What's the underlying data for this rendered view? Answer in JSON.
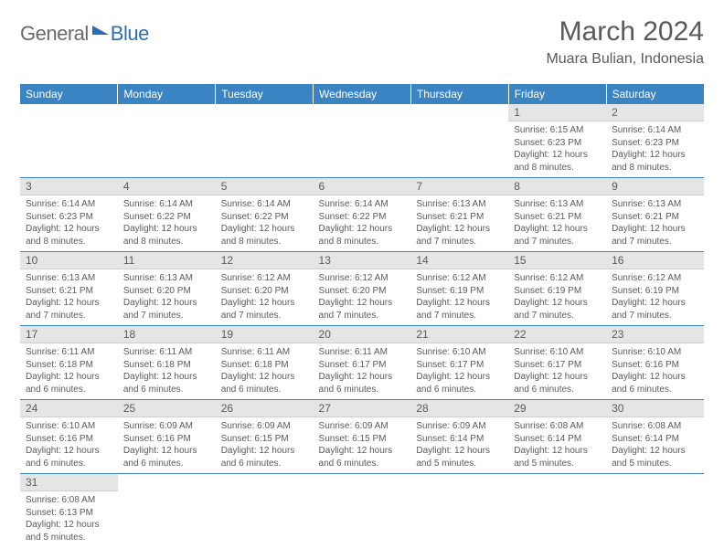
{
  "logo": {
    "text1": "General",
    "text2": "Blue"
  },
  "title": "March 2024",
  "subtitle": "Muara Bulian, Indonesia",
  "colors": {
    "header_bg": "#3b84c4",
    "header_text": "#ffffff",
    "daynum_bg": "#e5e5e5",
    "text": "#5a5a5a",
    "border": "#3b84c4",
    "logo_gray": "#6a6a6a",
    "logo_blue": "#2a6fb5"
  },
  "weekdays": [
    "Sunday",
    "Monday",
    "Tuesday",
    "Wednesday",
    "Thursday",
    "Friday",
    "Saturday"
  ],
  "weeks": [
    [
      null,
      null,
      null,
      null,
      null,
      {
        "n": "1",
        "sr": "6:15 AM",
        "ss": "6:23 PM",
        "dl": "12 hours and 8 minutes."
      },
      {
        "n": "2",
        "sr": "6:14 AM",
        "ss": "6:23 PM",
        "dl": "12 hours and 8 minutes."
      }
    ],
    [
      {
        "n": "3",
        "sr": "6:14 AM",
        "ss": "6:23 PM",
        "dl": "12 hours and 8 minutes."
      },
      {
        "n": "4",
        "sr": "6:14 AM",
        "ss": "6:22 PM",
        "dl": "12 hours and 8 minutes."
      },
      {
        "n": "5",
        "sr": "6:14 AM",
        "ss": "6:22 PM",
        "dl": "12 hours and 8 minutes."
      },
      {
        "n": "6",
        "sr": "6:14 AM",
        "ss": "6:22 PM",
        "dl": "12 hours and 8 minutes."
      },
      {
        "n": "7",
        "sr": "6:13 AM",
        "ss": "6:21 PM",
        "dl": "12 hours and 7 minutes."
      },
      {
        "n": "8",
        "sr": "6:13 AM",
        "ss": "6:21 PM",
        "dl": "12 hours and 7 minutes."
      },
      {
        "n": "9",
        "sr": "6:13 AM",
        "ss": "6:21 PM",
        "dl": "12 hours and 7 minutes."
      }
    ],
    [
      {
        "n": "10",
        "sr": "6:13 AM",
        "ss": "6:21 PM",
        "dl": "12 hours and 7 minutes."
      },
      {
        "n": "11",
        "sr": "6:13 AM",
        "ss": "6:20 PM",
        "dl": "12 hours and 7 minutes."
      },
      {
        "n": "12",
        "sr": "6:12 AM",
        "ss": "6:20 PM",
        "dl": "12 hours and 7 minutes."
      },
      {
        "n": "13",
        "sr": "6:12 AM",
        "ss": "6:20 PM",
        "dl": "12 hours and 7 minutes."
      },
      {
        "n": "14",
        "sr": "6:12 AM",
        "ss": "6:19 PM",
        "dl": "12 hours and 7 minutes."
      },
      {
        "n": "15",
        "sr": "6:12 AM",
        "ss": "6:19 PM",
        "dl": "12 hours and 7 minutes."
      },
      {
        "n": "16",
        "sr": "6:12 AM",
        "ss": "6:19 PM",
        "dl": "12 hours and 7 minutes."
      }
    ],
    [
      {
        "n": "17",
        "sr": "6:11 AM",
        "ss": "6:18 PM",
        "dl": "12 hours and 6 minutes."
      },
      {
        "n": "18",
        "sr": "6:11 AM",
        "ss": "6:18 PM",
        "dl": "12 hours and 6 minutes."
      },
      {
        "n": "19",
        "sr": "6:11 AM",
        "ss": "6:18 PM",
        "dl": "12 hours and 6 minutes."
      },
      {
        "n": "20",
        "sr": "6:11 AM",
        "ss": "6:17 PM",
        "dl": "12 hours and 6 minutes."
      },
      {
        "n": "21",
        "sr": "6:10 AM",
        "ss": "6:17 PM",
        "dl": "12 hours and 6 minutes."
      },
      {
        "n": "22",
        "sr": "6:10 AM",
        "ss": "6:17 PM",
        "dl": "12 hours and 6 minutes."
      },
      {
        "n": "23",
        "sr": "6:10 AM",
        "ss": "6:16 PM",
        "dl": "12 hours and 6 minutes."
      }
    ],
    [
      {
        "n": "24",
        "sr": "6:10 AM",
        "ss": "6:16 PM",
        "dl": "12 hours and 6 minutes."
      },
      {
        "n": "25",
        "sr": "6:09 AM",
        "ss": "6:16 PM",
        "dl": "12 hours and 6 minutes."
      },
      {
        "n": "26",
        "sr": "6:09 AM",
        "ss": "6:15 PM",
        "dl": "12 hours and 6 minutes."
      },
      {
        "n": "27",
        "sr": "6:09 AM",
        "ss": "6:15 PM",
        "dl": "12 hours and 6 minutes."
      },
      {
        "n": "28",
        "sr": "6:09 AM",
        "ss": "6:14 PM",
        "dl": "12 hours and 5 minutes."
      },
      {
        "n": "29",
        "sr": "6:08 AM",
        "ss": "6:14 PM",
        "dl": "12 hours and 5 minutes."
      },
      {
        "n": "30",
        "sr": "6:08 AM",
        "ss": "6:14 PM",
        "dl": "12 hours and 5 minutes."
      }
    ],
    [
      {
        "n": "31",
        "sr": "6:08 AM",
        "ss": "6:13 PM",
        "dl": "12 hours and 5 minutes."
      },
      null,
      null,
      null,
      null,
      null,
      null
    ]
  ],
  "labels": {
    "sunrise": "Sunrise:",
    "sunset": "Sunset:",
    "daylight": "Daylight:"
  }
}
